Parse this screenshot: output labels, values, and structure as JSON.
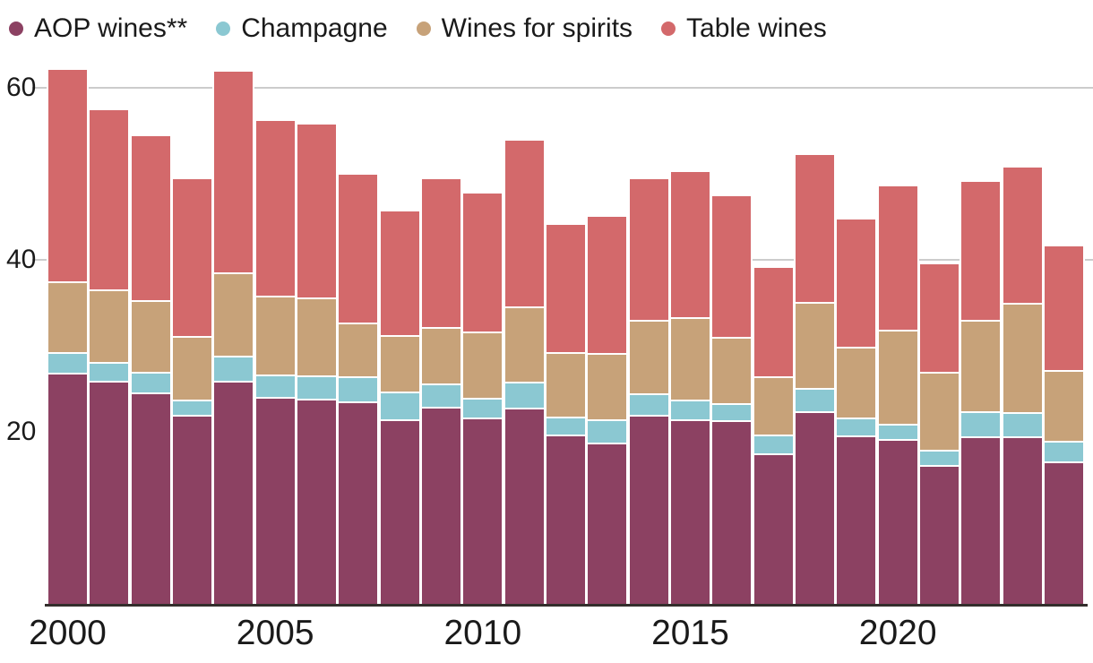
{
  "legend": {
    "items": [
      "AOP wines**",
      "Champagne",
      "Wines for spirits",
      "Table wines"
    ]
  },
  "colors": {
    "aop": "#8C4162",
    "champagne": "#8BC8D2",
    "spirits": "#C7A279",
    "table": "#D3696B",
    "gridline": "#cccccc",
    "axis_line": "#332e2c",
    "text": "#1a1a1a",
    "background": "#ffffff"
  },
  "chart_data": {
    "type": "bar",
    "stacked": true,
    "x": [
      2000,
      2001,
      2002,
      2003,
      2004,
      2005,
      2006,
      2007,
      2008,
      2009,
      2010,
      2011,
      2012,
      2013,
      2014,
      2015,
      2016,
      2017,
      2018,
      2019,
      2020,
      2021,
      2022,
      2023,
      2024
    ],
    "series": [
      {
        "name": "AOP wines**",
        "color": "#8C4162",
        "values": [
          26.9,
          25.9,
          24.6,
          22.0,
          25.9,
          24.0,
          23.8,
          23.5,
          21.4,
          22.9,
          21.6,
          22.8,
          19.7,
          18.7,
          22.0,
          21.4,
          21.3,
          17.5,
          22.4,
          19.6,
          19.1,
          16.1,
          19.5,
          19.5,
          16.6
        ]
      },
      {
        "name": "Champagne",
        "color": "#8BC8D2",
        "values": [
          2.3,
          2.2,
          2.4,
          1.7,
          2.9,
          2.6,
          2.7,
          2.9,
          3.3,
          2.7,
          2.3,
          3.0,
          2.1,
          2.7,
          2.5,
          2.3,
          2.0,
          2.2,
          2.7,
          2.1,
          1.8,
          1.8,
          2.9,
          2.8,
          2.3
        ]
      },
      {
        "name": "Wines for spirits",
        "color": "#C7A279",
        "values": [
          8.3,
          8.4,
          8.3,
          7.4,
          9.7,
          9.2,
          9.1,
          6.3,
          6.5,
          6.6,
          7.7,
          8.8,
          7.4,
          7.7,
          8.5,
          9.6,
          7.7,
          6.7,
          10.0,
          8.2,
          10.9,
          9.1,
          10.6,
          12.7,
          8.3
        ]
      },
      {
        "name": "Table wines",
        "color": "#D3696B",
        "values": [
          24.5,
          20.9,
          19.0,
          18.2,
          23.3,
          20.3,
          20.1,
          17.2,
          14.4,
          17.1,
          16.1,
          19.2,
          14.8,
          15.9,
          16.3,
          16.9,
          16.4,
          12.6,
          17.0,
          14.7,
          16.7,
          12.4,
          16.0,
          15.7,
          14.3
        ]
      }
    ],
    "totals": [
      62.0,
      57.4,
      54.3,
      49.3,
      61.8,
      56.1,
      55.7,
      49.9,
      45.6,
      49.3,
      47.7,
      53.8,
      44.0,
      45.0,
      49.3,
      50.2,
      47.4,
      39.0,
      52.1,
      44.6,
      48.5,
      39.4,
      49.0,
      50.7,
      41.5
    ],
    "title": "",
    "xlabel": "",
    "ylabel": "",
    "ylim": [
      0,
      64
    ],
    "yticks": [
      20,
      40,
      60
    ],
    "gridline_values": [
      40,
      60
    ],
    "xticks": [
      2000,
      2005,
      2010,
      2015,
      2020
    ],
    "grid": "horizontal",
    "legend_position": "top-left"
  }
}
